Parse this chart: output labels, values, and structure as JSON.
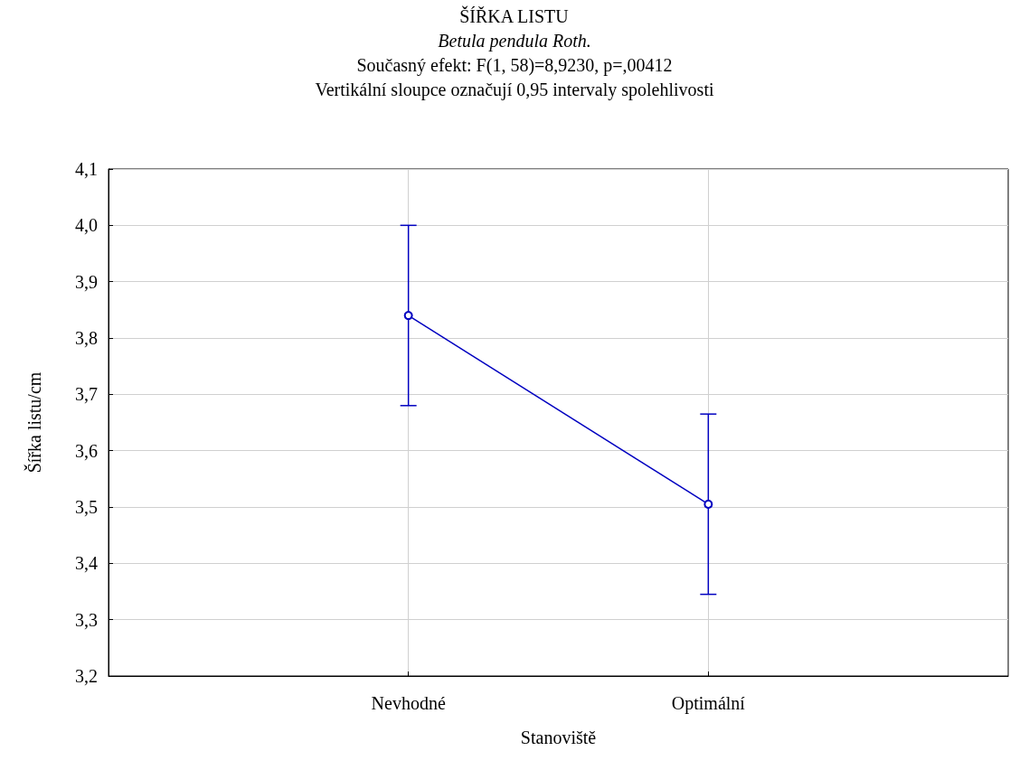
{
  "chart_data": {
    "type": "line",
    "title": "ŠÍŘKA LISTU",
    "subtitle": "Betula pendula Roth.",
    "annotations": [
      "Současný efekt: F(1, 58)=8,9230, p=,00412",
      "Vertikální sloupce označují 0,95 intervaly spolehlivosti"
    ],
    "xlabel": "Stanoviště",
    "ylabel": "Šířka listu/cm",
    "categories": [
      "Nevhodné",
      "Optimální"
    ],
    "series": [
      {
        "color": "#0000c0",
        "values": [
          3.84,
          3.505
        ],
        "errors": [
          0.16,
          0.16
        ]
      }
    ],
    "ylim": [
      3.2,
      4.1
    ],
    "yticks": [
      {
        "value": 3.2,
        "label": "3,2"
      },
      {
        "value": 3.3,
        "label": "3,3"
      },
      {
        "value": 3.4,
        "label": "3,4"
      },
      {
        "value": 3.5,
        "label": "3,5"
      },
      {
        "value": 3.6,
        "label": "3,6"
      },
      {
        "value": 3.7,
        "label": "3,7"
      },
      {
        "value": 3.8,
        "label": "3,8"
      },
      {
        "value": 3.9,
        "label": "3,9"
      },
      {
        "value": 4.0,
        "label": "4,0"
      },
      {
        "value": 4.1,
        "label": "4,1"
      }
    ],
    "grid": true,
    "marker": "circle",
    "line_style": "solid"
  }
}
